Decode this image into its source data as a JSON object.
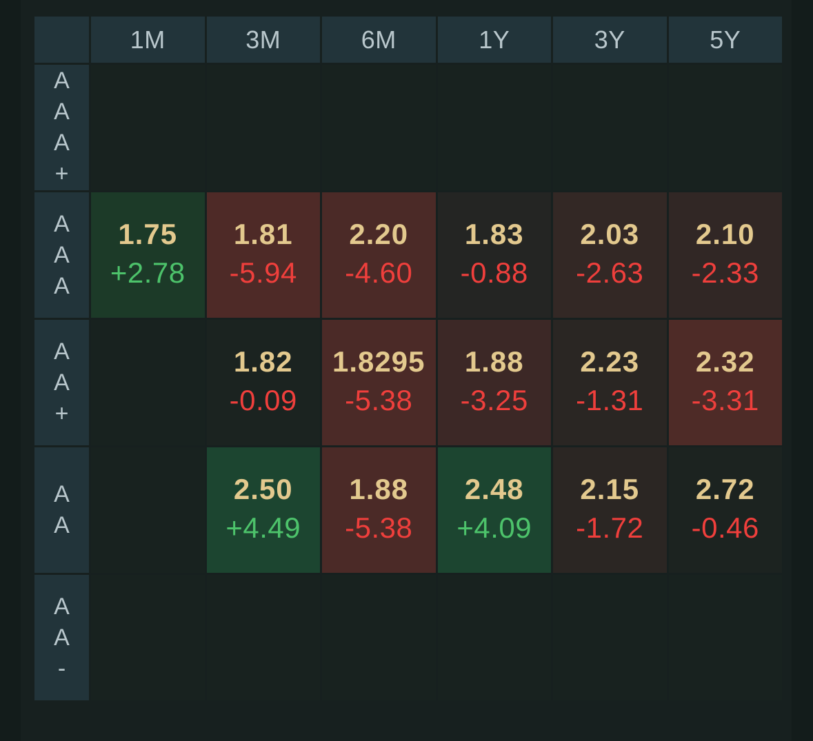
{
  "columns": [
    "1M",
    "3M",
    "6M",
    "1Y",
    "3Y",
    "5Y"
  ],
  "rows": [
    {
      "label": "A\nA\nA\n+",
      "cells": [
        {
          "price": "",
          "change": "",
          "bg": "#18221f"
        },
        {
          "price": "",
          "change": "",
          "bg": "#18221f"
        },
        {
          "price": "",
          "change": "",
          "bg": "#18221f"
        },
        {
          "price": "",
          "change": "",
          "bg": "#18221f"
        },
        {
          "price": "",
          "change": "",
          "bg": "#18221f"
        },
        {
          "price": "",
          "change": "",
          "bg": "#18221f"
        }
      ]
    },
    {
      "label": "A\nA\nA",
      "cells": [
        {
          "price": "1.75",
          "change": "+2.78",
          "dir": "pos",
          "bg": "#1c3a28"
        },
        {
          "price": "1.81",
          "change": "-5.94",
          "dir": "neg",
          "bg": "#4e2a27"
        },
        {
          "price": "2.20",
          "change": "-4.60",
          "dir": "neg",
          "bg": "#4b2a27"
        },
        {
          "price": "1.83",
          "change": "-0.88",
          "dir": "neg",
          "bg": "#242523"
        },
        {
          "price": "2.03",
          "change": "-2.63",
          "dir": "neg",
          "bg": "#332825"
        },
        {
          "price": "2.10",
          "change": "-2.33",
          "dir": "neg",
          "bg": "#312725"
        }
      ]
    },
    {
      "label": "A\nA\n+",
      "cells": [
        {
          "price": "",
          "change": "",
          "bg": "#18221f"
        },
        {
          "price": "1.82",
          "change": "-0.09",
          "dir": "neg",
          "bg": "#1b2320"
        },
        {
          "price": "1.8295",
          "change": "-5.38",
          "dir": "neg",
          "bg": "#4b2a27"
        },
        {
          "price": "1.88",
          "change": "-3.25",
          "dir": "neg",
          "bg": "#3c2826"
        },
        {
          "price": "2.23",
          "change": "-1.31",
          "dir": "neg",
          "bg": "#2a2623"
        },
        {
          "price": "2.32",
          "change": "-3.31",
          "dir": "neg",
          "bg": "#4e2b27"
        }
      ]
    },
    {
      "label": "A\nA",
      "cells": [
        {
          "price": "",
          "change": "",
          "bg": "#18221f"
        },
        {
          "price": "2.50",
          "change": "+4.49",
          "dir": "pos",
          "bg": "#1c4530"
        },
        {
          "price": "1.88",
          "change": "-5.38",
          "dir": "neg",
          "bg": "#4b2a27"
        },
        {
          "price": "2.48",
          "change": "+4.09",
          "dir": "pos",
          "bg": "#1c4530"
        },
        {
          "price": "2.15",
          "change": "-1.72",
          "dir": "neg",
          "bg": "#2b2623"
        },
        {
          "price": "2.72",
          "change": "-0.46",
          "dir": "neg",
          "bg": "#1c2320"
        }
      ]
    },
    {
      "label": "A\nA\n-",
      "cells": [
        {
          "price": "",
          "change": "",
          "bg": "#18221f"
        },
        {
          "price": "",
          "change": "",
          "bg": "#18221f"
        },
        {
          "price": "",
          "change": "",
          "bg": "#18221f"
        },
        {
          "price": "",
          "change": "",
          "bg": "#18221f"
        },
        {
          "price": "",
          "change": "",
          "bg": "#18221f"
        },
        {
          "price": "",
          "change": "",
          "bg": "#18221f"
        }
      ]
    }
  ]
}
